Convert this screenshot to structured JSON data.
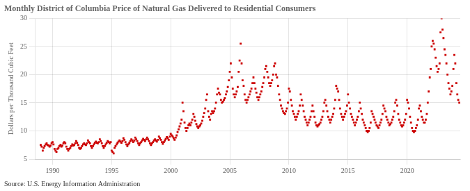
{
  "chart_data": {
    "type": "scatter",
    "title": "Monthly District of Columbia Price of Natural Gas Delivered to Residential Consumers",
    "y_label": "Dollars per Thousand Cubic Feet",
    "annotations": [
      "Source: U.S. Energy Information Administration"
    ],
    "color": "#cc0000",
    "marker": "square",
    "grid": true,
    "xlim": [
      1988.5,
      2024.5
    ],
    "ylim": [
      5,
      30
    ],
    "xticks": [
      1990,
      1995,
      2000,
      2005,
      2010,
      2015,
      2020
    ],
    "yticks": [
      5,
      10,
      15,
      20,
      25,
      30
    ],
    "x": [
      1989.0,
      1989.08,
      1989.17,
      1989.25,
      1989.33,
      1989.42,
      1989.5,
      1989.58,
      1989.67,
      1989.75,
      1989.83,
      1989.92,
      1990.0,
      1990.08,
      1990.17,
      1990.25,
      1990.33,
      1990.42,
      1990.5,
      1990.58,
      1990.67,
      1990.75,
      1990.83,
      1990.92,
      1991.0,
      1991.08,
      1991.17,
      1991.25,
      1991.33,
      1991.42,
      1991.5,
      1991.58,
      1991.67,
      1991.75,
      1991.83,
      1991.92,
      1992.0,
      1992.08,
      1992.17,
      1992.25,
      1992.33,
      1992.42,
      1992.5,
      1992.58,
      1992.67,
      1992.75,
      1992.83,
      1992.92,
      1993.0,
      1993.08,
      1993.17,
      1993.25,
      1993.33,
      1993.42,
      1993.5,
      1993.58,
      1993.67,
      1993.75,
      1993.83,
      1993.92,
      1994.0,
      1994.08,
      1994.17,
      1994.25,
      1994.33,
      1994.42,
      1994.5,
      1994.58,
      1994.67,
      1994.75,
      1994.83,
      1994.92,
      1995.0,
      1995.08,
      1995.17,
      1995.25,
      1995.33,
      1995.42,
      1995.5,
      1995.58,
      1995.67,
      1995.75,
      1995.83,
      1995.92,
      1996.0,
      1996.08,
      1996.17,
      1996.25,
      1996.33,
      1996.42,
      1996.5,
      1996.58,
      1996.67,
      1996.75,
      1996.83,
      1996.92,
      1997.0,
      1997.08,
      1997.17,
      1997.25,
      1997.33,
      1997.42,
      1997.5,
      1997.58,
      1997.67,
      1997.75,
      1997.83,
      1997.92,
      1998.0,
      1998.08,
      1998.17,
      1998.25,
      1998.33,
      1998.42,
      1998.5,
      1998.58,
      1998.67,
      1998.75,
      1998.83,
      1998.92,
      1999.0,
      1999.08,
      1999.17,
      1999.25,
      1999.33,
      1999.42,
      1999.5,
      1999.58,
      1999.67,
      1999.75,
      1999.83,
      1999.92,
      2000.0,
      2000.08,
      2000.17,
      2000.25,
      2000.33,
      2000.42,
      2000.5,
      2000.58,
      2000.67,
      2000.75,
      2000.83,
      2000.92,
      2001.0,
      2001.08,
      2001.17,
      2001.25,
      2001.33,
      2001.42,
      2001.5,
      2001.58,
      2001.67,
      2001.75,
      2001.83,
      2001.92,
      2002.0,
      2002.08,
      2002.17,
      2002.25,
      2002.33,
      2002.42,
      2002.5,
      2002.58,
      2002.67,
      2002.75,
      2002.83,
      2002.92,
      2003.0,
      2003.08,
      2003.17,
      2003.25,
      2003.33,
      2003.42,
      2003.5,
      2003.58,
      2003.67,
      2003.75,
      2003.83,
      2003.92,
      2004.0,
      2004.08,
      2004.17,
      2004.25,
      2004.33,
      2004.42,
      2004.5,
      2004.58,
      2004.67,
      2004.75,
      2004.83,
      2004.92,
      2005.0,
      2005.08,
      2005.17,
      2005.25,
      2005.33,
      2005.42,
      2005.5,
      2005.58,
      2005.67,
      2005.75,
      2005.83,
      2005.92,
      2006.0,
      2006.08,
      2006.17,
      2006.25,
      2006.33,
      2006.42,
      2006.5,
      2006.58,
      2006.67,
      2006.75,
      2006.83,
      2006.92,
      2007.0,
      2007.08,
      2007.17,
      2007.25,
      2007.33,
      2007.42,
      2007.5,
      2007.58,
      2007.67,
      2007.75,
      2007.83,
      2007.92,
      2008.0,
      2008.08,
      2008.17,
      2008.25,
      2008.33,
      2008.42,
      2008.5,
      2008.58,
      2008.67,
      2008.75,
      2008.83,
      2008.92,
      2009.0,
      2009.08,
      2009.17,
      2009.25,
      2009.33,
      2009.42,
      2009.5,
      2009.58,
      2009.67,
      2009.75,
      2009.83,
      2009.92,
      2010.0,
      2010.08,
      2010.17,
      2010.25,
      2010.33,
      2010.42,
      2010.5,
      2010.58,
      2010.67,
      2010.75,
      2010.83,
      2010.92,
      2011.0,
      2011.08,
      2011.17,
      2011.25,
      2011.33,
      2011.42,
      2011.5,
      2011.58,
      2011.67,
      2011.75,
      2011.83,
      2011.92,
      2012.0,
      2012.08,
      2012.17,
      2012.25,
      2012.33,
      2012.42,
      2012.5,
      2012.58,
      2012.67,
      2012.75,
      2012.83,
      2012.92,
      2013.0,
      2013.08,
      2013.17,
      2013.25,
      2013.33,
      2013.42,
      2013.5,
      2013.58,
      2013.67,
      2013.75,
      2013.83,
      2013.92,
      2014.0,
      2014.08,
      2014.17,
      2014.25,
      2014.33,
      2014.42,
      2014.5,
      2014.58,
      2014.67,
      2014.75,
      2014.83,
      2014.92,
      2015.0,
      2015.08,
      2015.17,
      2015.25,
      2015.33,
      2015.42,
      2015.5,
      2015.58,
      2015.67,
      2015.75,
      2015.83,
      2015.92,
      2016.0,
      2016.08,
      2016.17,
      2016.25,
      2016.33,
      2016.42,
      2016.5,
      2016.58,
      2016.67,
      2016.75,
      2016.83,
      2016.92,
      2017.0,
      2017.08,
      2017.17,
      2017.25,
      2017.33,
      2017.42,
      2017.5,
      2017.58,
      2017.67,
      2017.75,
      2017.83,
      2017.92,
      2018.0,
      2018.08,
      2018.17,
      2018.25,
      2018.33,
      2018.42,
      2018.5,
      2018.58,
      2018.67,
      2018.75,
      2018.83,
      2018.92,
      2019.0,
      2019.08,
      2019.17,
      2019.25,
      2019.33,
      2019.42,
      2019.5,
      2019.58,
      2019.67,
      2019.75,
      2019.83,
      2019.92,
      2020.0,
      2020.08,
      2020.17,
      2020.25,
      2020.33,
      2020.42,
      2020.5,
      2020.58,
      2020.67,
      2020.75,
      2020.83,
      2020.92,
      2021.0,
      2021.08,
      2021.17,
      2021.25,
      2021.33,
      2021.42,
      2021.5,
      2021.58,
      2021.67,
      2021.75,
      2021.83,
      2021.92,
      2022.0,
      2022.08,
      2022.17,
      2022.25,
      2022.33,
      2022.42,
      2022.5,
      2022.58,
      2022.67,
      2022.75,
      2022.83,
      2022.92,
      2023.0,
      2023.08,
      2023.17,
      2023.25,
      2023.33,
      2023.42,
      2023.5,
      2023.58,
      2023.67,
      2023.75,
      2023.83,
      2023.92,
      2024.0,
      2024.08,
      2024.17,
      2024.25,
      2024.33,
      2024.42
    ],
    "values": [
      7.5,
      7.2,
      6.5,
      7.0,
      7.3,
      7.6,
      7.8,
      7.5,
      7.4,
      7.2,
      7.4,
      7.8,
      8.0,
      7.6,
      6.8,
      6.5,
      6.3,
      6.8,
      7.0,
      7.3,
      7.5,
      7.2,
      7.4,
      7.8,
      8.0,
      7.8,
      7.2,
      6.8,
      6.5,
      6.8,
      7.0,
      7.3,
      7.6,
      7.4,
      7.5,
      7.8,
      8.2,
      7.9,
      7.5,
      7.0,
      6.8,
      7.0,
      7.3,
      7.6,
      7.8,
      7.6,
      7.5,
      7.8,
      8.3,
      8.0,
      7.8,
      7.3,
      7.0,
      7.3,
      7.6,
      7.9,
      8.1,
      7.9,
      7.8,
      8.0,
      8.5,
      8.2,
      7.8,
      7.3,
      7.0,
      7.3,
      7.6,
      7.9,
      8.2,
      8.0,
      7.8,
      8.0,
      6.5,
      6.3,
      6.0,
      7.0,
      7.3,
      7.6,
      7.9,
      8.1,
      8.3,
      8.1,
      7.9,
      8.2,
      8.7,
      8.4,
      8.0,
      7.6,
      7.3,
      7.6,
      7.9,
      8.2,
      8.5,
      8.3,
      8.0,
      8.3,
      8.8,
      8.5,
      8.2,
      7.8,
      7.5,
      7.8,
      8.0,
      8.3,
      8.6,
      8.4,
      8.2,
      8.5,
      8.8,
      8.5,
      8.2,
      7.8,
      7.5,
      7.8,
      8.0,
      8.3,
      8.5,
      8.3,
      8.1,
      8.4,
      9.0,
      8.7,
      8.4,
      8.0,
      7.7,
      8.0,
      8.3,
      8.6,
      8.9,
      8.7,
      8.4,
      9.0,
      9.5,
      9.2,
      9.0,
      8.7,
      8.4,
      8.8,
      9.2,
      9.8,
      10.3,
      10.8,
      11.3,
      12.0,
      15.0,
      13.5,
      11.5,
      10.5,
      10.0,
      10.5,
      11.0,
      11.3,
      11.0,
      11.5,
      12.0,
      13.0,
      12.5,
      11.8,
      11.2,
      10.8,
      10.5,
      10.8,
      11.0,
      11.3,
      11.8,
      12.5,
      13.2,
      14.0,
      15.5,
      16.5,
      13.5,
      12.5,
      12.0,
      13.0,
      13.5,
      13.2,
      13.5,
      14.0,
      15.0,
      16.5,
      17.5,
      16.8,
      16.5,
      15.5,
      15.0,
      15.2,
      15.5,
      15.8,
      16.5,
      17.0,
      17.8,
      19.0,
      20.5,
      22.0,
      19.5,
      17.5,
      16.5,
      16.0,
      16.5,
      17.0,
      17.8,
      20.5,
      22.5,
      25.5,
      22.0,
      19.0,
      18.0,
      16.5,
      15.5,
      15.0,
      15.5,
      16.0,
      16.5,
      17.0,
      17.5,
      18.5,
      19.5,
      18.5,
      17.5,
      16.8,
      16.0,
      15.5,
      16.0,
      16.5,
      17.0,
      17.8,
      18.5,
      19.5,
      21.0,
      21.5,
      20.5,
      19.5,
      18.5,
      18.0,
      18.5,
      19.0,
      20.0,
      21.5,
      22.0,
      20.0,
      19.5,
      18.0,
      16.5,
      15.5,
      14.5,
      14.0,
      13.5,
      13.2,
      13.0,
      13.5,
      14.0,
      15.0,
      17.5,
      17.0,
      15.5,
      14.5,
      13.5,
      13.0,
      12.5,
      12.0,
      12.5,
      13.0,
      13.5,
      14.5,
      16.5,
      15.5,
      14.5,
      13.5,
      12.5,
      12.0,
      11.5,
      11.0,
      11.5,
      12.0,
      12.5,
      13.5,
      14.5,
      13.5,
      12.5,
      11.5,
      11.0,
      10.8,
      11.0,
      11.2,
      11.5,
      12.0,
      12.5,
      13.5,
      15.0,
      15.5,
      14.5,
      13.5,
      12.5,
      12.0,
      11.5,
      12.0,
      12.5,
      13.0,
      14.0,
      15.5,
      18.0,
      17.5,
      17.0,
      15.5,
      14.0,
      13.0,
      12.5,
      12.0,
      12.5,
      13.0,
      13.5,
      14.5,
      16.5,
      15.0,
      14.0,
      13.0,
      12.5,
      12.0,
      11.5,
      11.0,
      11.5,
      12.0,
      12.5,
      13.5,
      15.0,
      14.0,
      13.0,
      12.0,
      11.5,
      11.0,
      10.5,
      10.0,
      9.8,
      10.0,
      10.5,
      11.5,
      13.5,
      13.0,
      12.5,
      12.0,
      11.5,
      11.0,
      10.8,
      10.5,
      11.0,
      11.5,
      12.0,
      13.0,
      14.5,
      14.0,
      13.5,
      12.5,
      12.0,
      11.5,
      11.0,
      11.2,
      11.5,
      12.0,
      12.5,
      13.5,
      15.0,
      15.5,
      14.5,
      13.0,
      12.0,
      11.5,
      11.0,
      10.8,
      11.0,
      11.5,
      12.0,
      13.0,
      15.5,
      15.0,
      14.0,
      12.5,
      11.5,
      10.5,
      10.0,
      9.8,
      10.0,
      10.5,
      11.0,
      12.0,
      14.0,
      14.5,
      13.5,
      12.5,
      12.0,
      11.5,
      11.5,
      12.0,
      13.0,
      15.0,
      17.0,
      19.5,
      21.0,
      25.0,
      26.0,
      25.5,
      24.5,
      23.0,
      21.5,
      20.5,
      21.0,
      22.0,
      27.5,
      30.0,
      28.0,
      26.5,
      24.5,
      23.5,
      22.0,
      20.0,
      18.5,
      17.5,
      16.5,
      17.0,
      18.0,
      21.0,
      23.5,
      22.0,
      18.5,
      16.5,
      15.5,
      15.0
    ]
  }
}
